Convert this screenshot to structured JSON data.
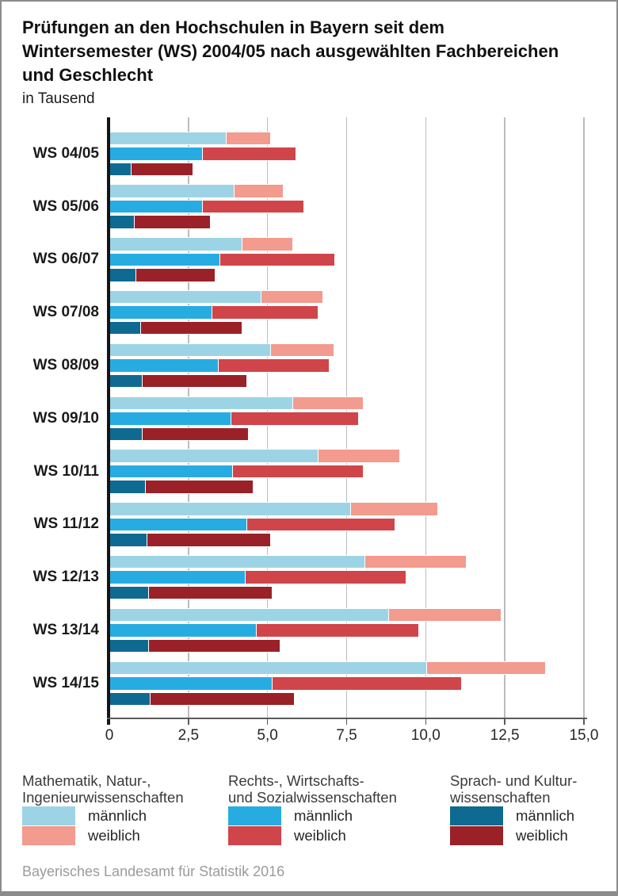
{
  "header": {
    "title_lines": [
      "Prüfungen an den Hochschulen in Bayern seit dem",
      "Wintersemester (WS) 2004/05 nach ausgewählten Fachbereichen",
      "und Geschlecht"
    ],
    "subtitle": "in Tausend"
  },
  "chart_data": {
    "type": "bar",
    "orientation": "horizontal, grouped by semester, stacked by gender",
    "title": "Prüfungen an den Hochschulen in Bayern seit dem Wintersemester (WS) 2004/05 nach ausgewählten Fachbereichen und Geschlecht",
    "unit": "in Tausend",
    "xlim": [
      0,
      15
    ],
    "grid": true,
    "legend_position": "bottom, three columns",
    "categories": [
      "WS 04/05",
      "WS 05/06",
      "WS 06/07",
      "WS 07/08",
      "WS 08/09",
      "WS 09/10",
      "WS 10/11",
      "WS 11/12",
      "WS 12/13",
      "WS 13/14",
      "WS 14/15"
    ],
    "x_ticks": [
      {
        "label": "0",
        "value": 0
      },
      {
        "label": "2,5",
        "value": 2.5
      },
      {
        "label": "5,0",
        "value": 5
      },
      {
        "label": "7,5",
        "value": 7.5
      },
      {
        "label": "10,0",
        "value": 10
      },
      {
        "label": "12,5",
        "value": 12.5
      },
      {
        "label": "15,0",
        "value": 15
      }
    ],
    "field_groups": [
      {
        "name_lines": [
          "Mathematik, Natur-,",
          "Ingenieurwissenschaften"
        ],
        "series": [
          {
            "name": "männlich",
            "color": "#9dd4e5",
            "values": [
              3.7,
              3.95,
              4.2,
              4.8,
              5.1,
              5.8,
              6.6,
              7.65,
              8.1,
              8.85,
              10.05
            ]
          },
          {
            "name": "weiblich",
            "color": "#f29b8e",
            "values": [
              1.4,
              1.55,
              1.6,
              1.95,
              2.0,
              2.25,
              2.6,
              2.75,
              3.2,
              3.55,
              3.75
            ]
          }
        ]
      },
      {
        "name_lines": [
          "Rechts-, Wirtschafts-",
          "und Sozialwissenschaften"
        ],
        "series": [
          {
            "name": "männlich",
            "color": "#27ace2",
            "values": [
              2.95,
              2.95,
              3.5,
              3.25,
              3.45,
              3.85,
              3.9,
              4.35,
              4.3,
              4.65,
              5.15
            ]
          },
          {
            "name": "weiblich",
            "color": "#d0454a",
            "values": [
              2.95,
              3.2,
              3.65,
              3.35,
              3.5,
              4.05,
              4.15,
              4.7,
              5.1,
              5.15,
              6.0
            ]
          }
        ]
      },
      {
        "name_lines": [
          "Sprach- und Kultur-",
          "wissenschaften"
        ],
        "series": [
          {
            "name": "männlich",
            "color": "#0f6a92",
            "values": [
              0.7,
              0.8,
              0.85,
              1.0,
              1.05,
              1.05,
              1.15,
              1.2,
              1.25,
              1.25,
              1.3
            ]
          },
          {
            "name": "weiblich",
            "color": "#9a2127",
            "values": [
              1.95,
              2.4,
              2.5,
              3.2,
              3.3,
              3.35,
              3.4,
              3.9,
              3.9,
              4.15,
              4.55
            ]
          }
        ]
      }
    ]
  },
  "footer": {
    "source": "Bayerisches Landesamt für Statistik 2016"
  },
  "colors": {
    "frame_border": "#8c8c8c",
    "gridline": "#bcbcbc",
    "axis": "#5a5a5a",
    "zero_line": "#141414",
    "bar_outline": "#ffffff",
    "category_text": "#1a1a1a",
    "legend_text": "#3a3a3a",
    "footer_text": "#9b9b9b"
  }
}
